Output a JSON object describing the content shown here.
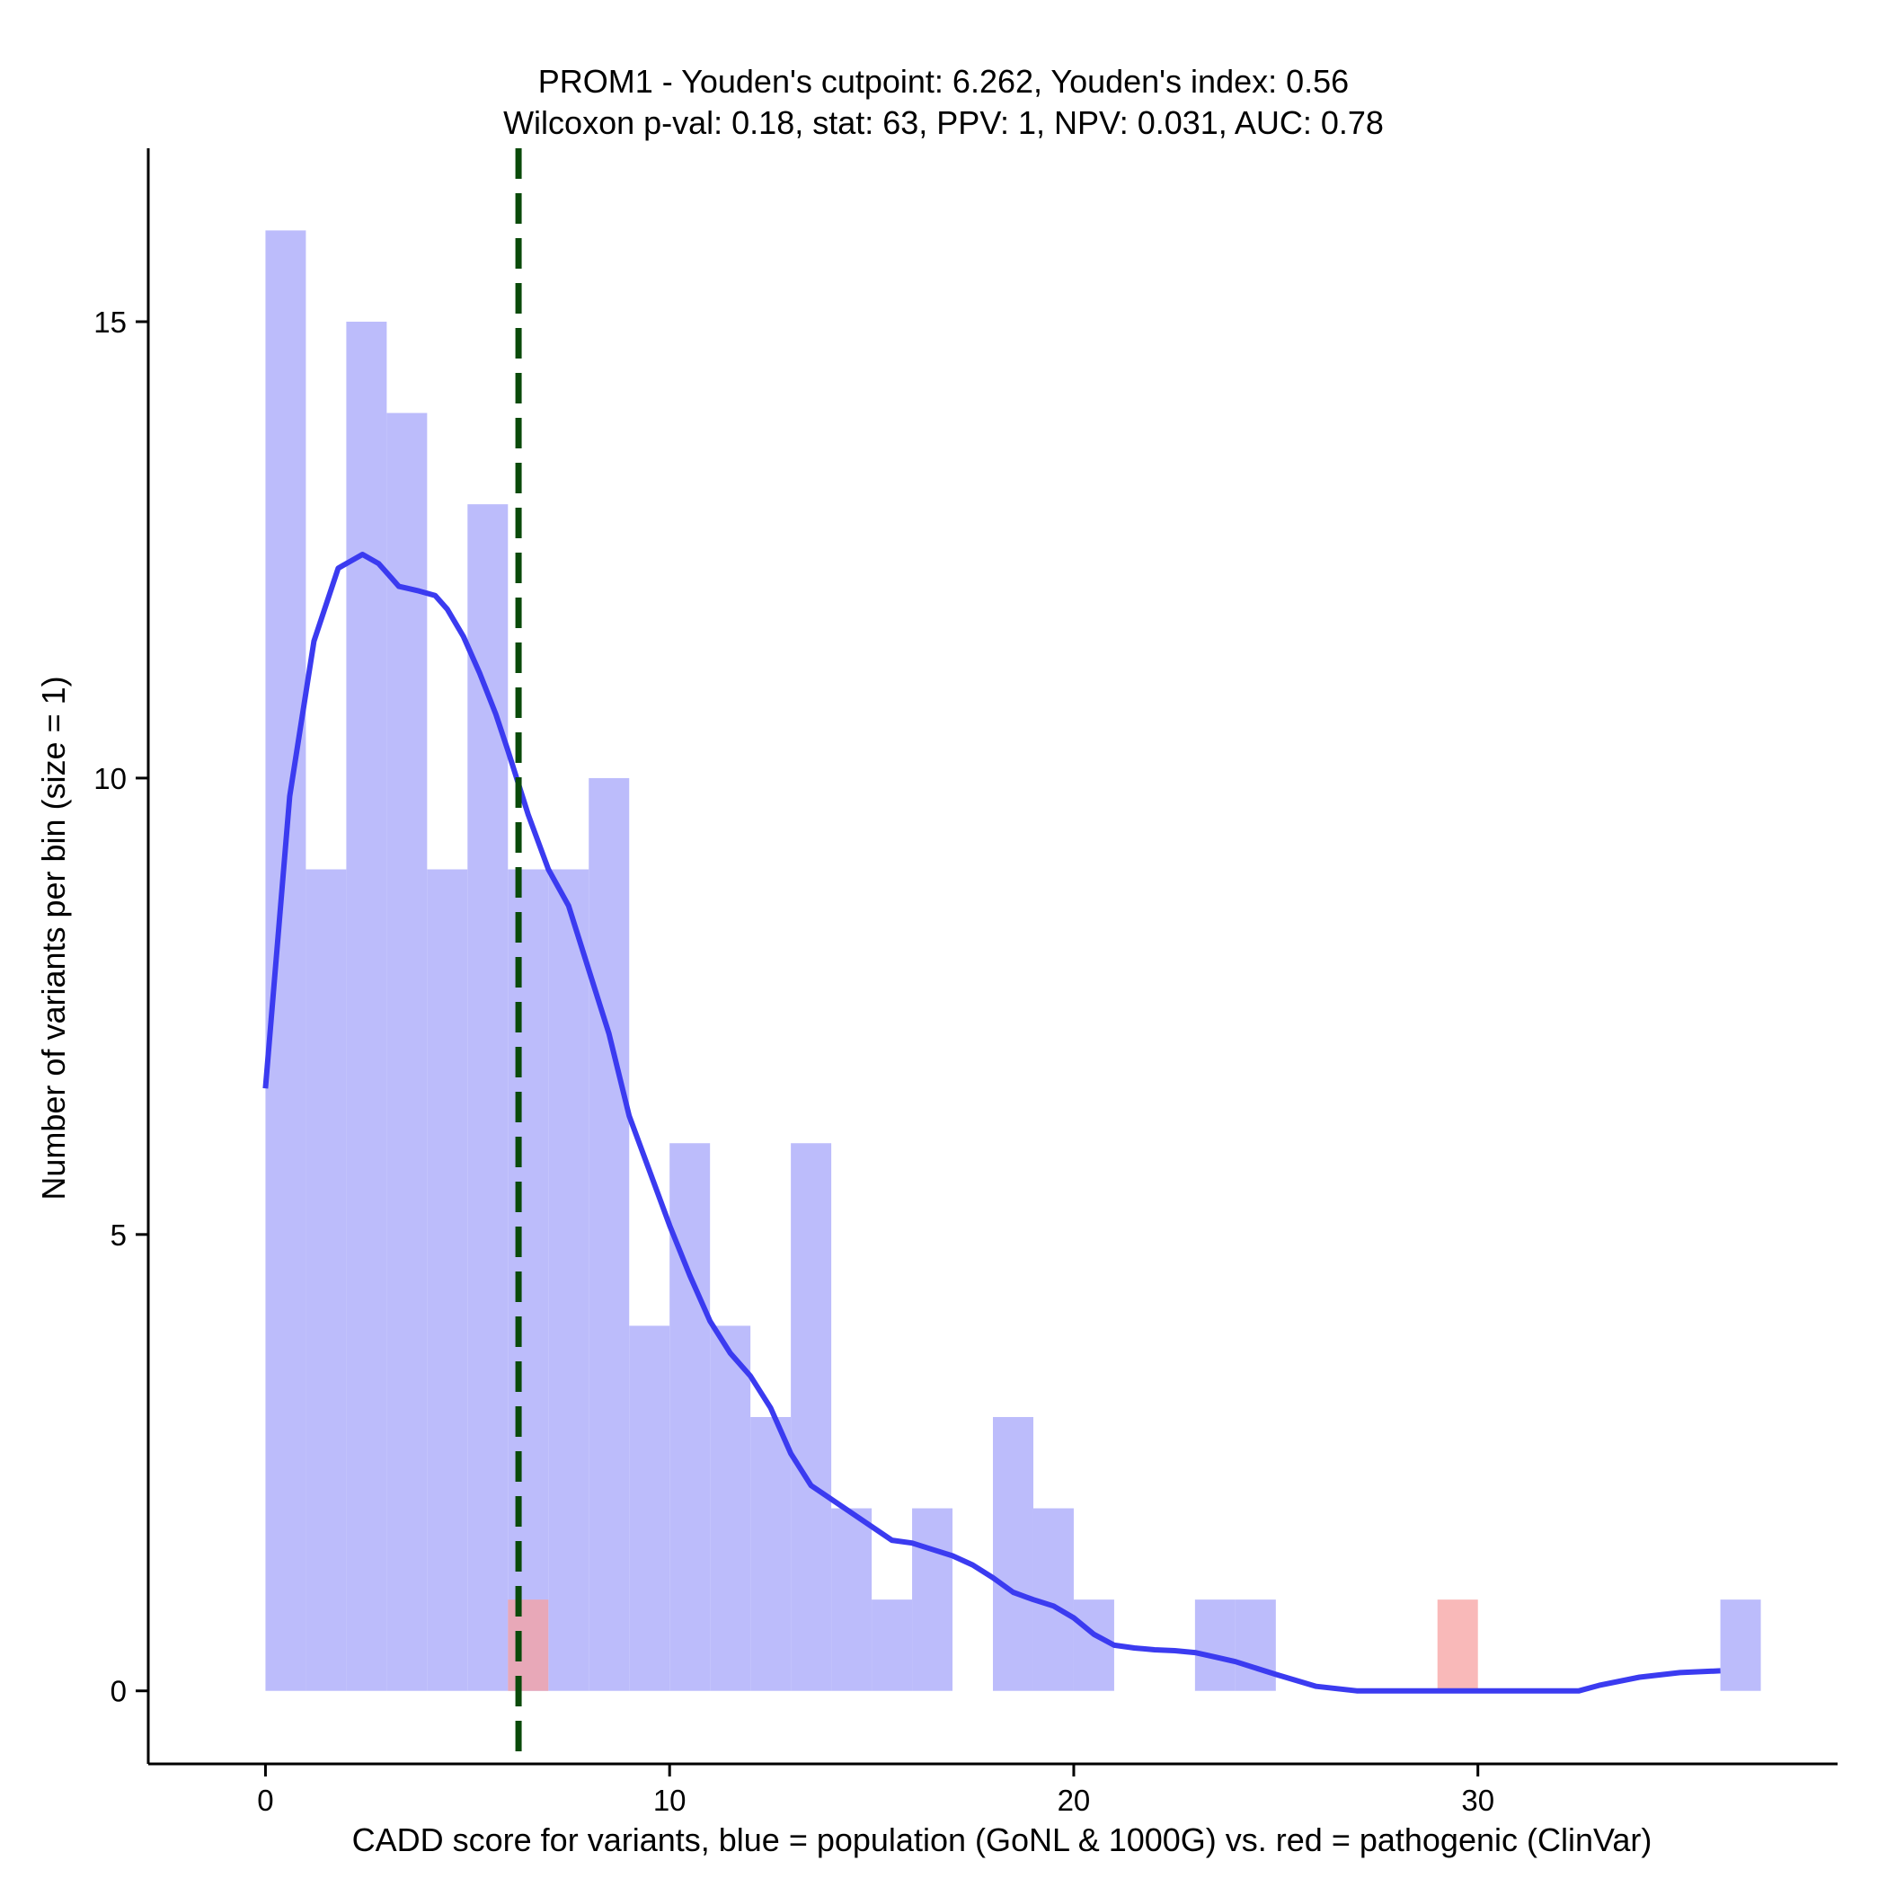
{
  "chart_data": {
    "type": "bar",
    "title_line1": "PROM1 - Youden's cutpoint: 6.262, Youden's index: 0.56",
    "title_line2": "Wilcoxon p-val: 0.18, stat: 63, PPV: 1, NPV: 0.031, AUC: 0.78",
    "xlabel": "CADD score for variants, blue = population (GoNL & 1000G) vs. red = pathogenic (ClinVar)",
    "ylabel": "Number of variants per bin (size = 1)",
    "xlim": [
      -2.9,
      38.9
    ],
    "ylim": [
      -0.8,
      16.9
    ],
    "x_ticks": [
      0,
      10,
      20,
      30
    ],
    "y_ticks": [
      0,
      5,
      10,
      15
    ],
    "bin_size": 1,
    "colors": {
      "population": "#bcbcfb",
      "pathogenic": "#f7a1a1",
      "density": "#3b3bf0",
      "cutpoint": "#0a4a0a"
    },
    "cutpoint": 6.262,
    "series": [
      {
        "name": "population (GoNL & 1000G)",
        "bin_starts": [
          0,
          1,
          2,
          3,
          4,
          5,
          6,
          7,
          8,
          9,
          10,
          11,
          12,
          13,
          14,
          15,
          16,
          17,
          18,
          19,
          20,
          21,
          22,
          23,
          24,
          25,
          26,
          27,
          28,
          29,
          30,
          31,
          32,
          33,
          34,
          35,
          36
        ],
        "values": [
          16,
          9,
          15,
          14,
          9,
          13,
          9,
          9,
          10,
          4,
          6,
          4,
          3,
          6,
          2,
          1,
          2,
          0,
          3,
          2,
          1,
          0,
          0,
          1,
          1,
          0,
          0,
          0,
          0,
          0,
          0,
          0,
          0,
          0,
          0,
          0,
          1
        ]
      },
      {
        "name": "pathogenic (ClinVar)",
        "bin_starts": [
          6,
          29
        ],
        "values": [
          1,
          1
        ]
      }
    ],
    "density_curve": {
      "x": [
        0,
        0.6,
        1.2,
        1.8,
        2.4,
        2.8,
        3.1,
        3.3,
        3.5,
        3.8,
        4.2,
        4.5,
        4.9,
        5.3,
        5.7,
        6.0,
        6.5,
        7.0,
        7.5,
        8.0,
        8.5,
        9.0,
        9.5,
        10.0,
        10.5,
        11.0,
        11.5,
        12.0,
        12.5,
        13.0,
        13.5,
        14.0,
        14.5,
        15.0,
        15.5,
        16.0,
        16.5,
        17.0,
        17.5,
        18.0,
        18.5,
        19.0,
        19.5,
        20.0,
        20.5,
        21.0,
        21.5,
        22.0,
        22.5,
        23.0,
        23.5,
        24.0,
        25.0,
        26.0,
        27.0,
        28.0,
        29.0,
        30.0,
        31.0,
        32.0,
        32.5,
        33.0,
        34.0,
        35.0,
        36.0
      ],
      "y": [
        6.6,
        9.8,
        11.5,
        12.3,
        12.45,
        12.35,
        12.2,
        12.1,
        12.08,
        12.05,
        12.0,
        11.85,
        11.55,
        11.15,
        10.7,
        10.3,
        9.6,
        9.0,
        8.6,
        7.9,
        7.2,
        6.3,
        5.7,
        5.1,
        4.55,
        4.05,
        3.7,
        3.45,
        3.1,
        2.6,
        2.25,
        2.1,
        1.95,
        1.8,
        1.65,
        1.62,
        1.55,
        1.48,
        1.38,
        1.24,
        1.08,
        1.0,
        0.93,
        0.8,
        0.62,
        0.5,
        0.47,
        0.45,
        0.44,
        0.42,
        0.37,
        0.32,
        0.18,
        0.05,
        0,
        0,
        0,
        0,
        0,
        0,
        0,
        0.06,
        0.15,
        0.2,
        0.22
      ]
    }
  }
}
